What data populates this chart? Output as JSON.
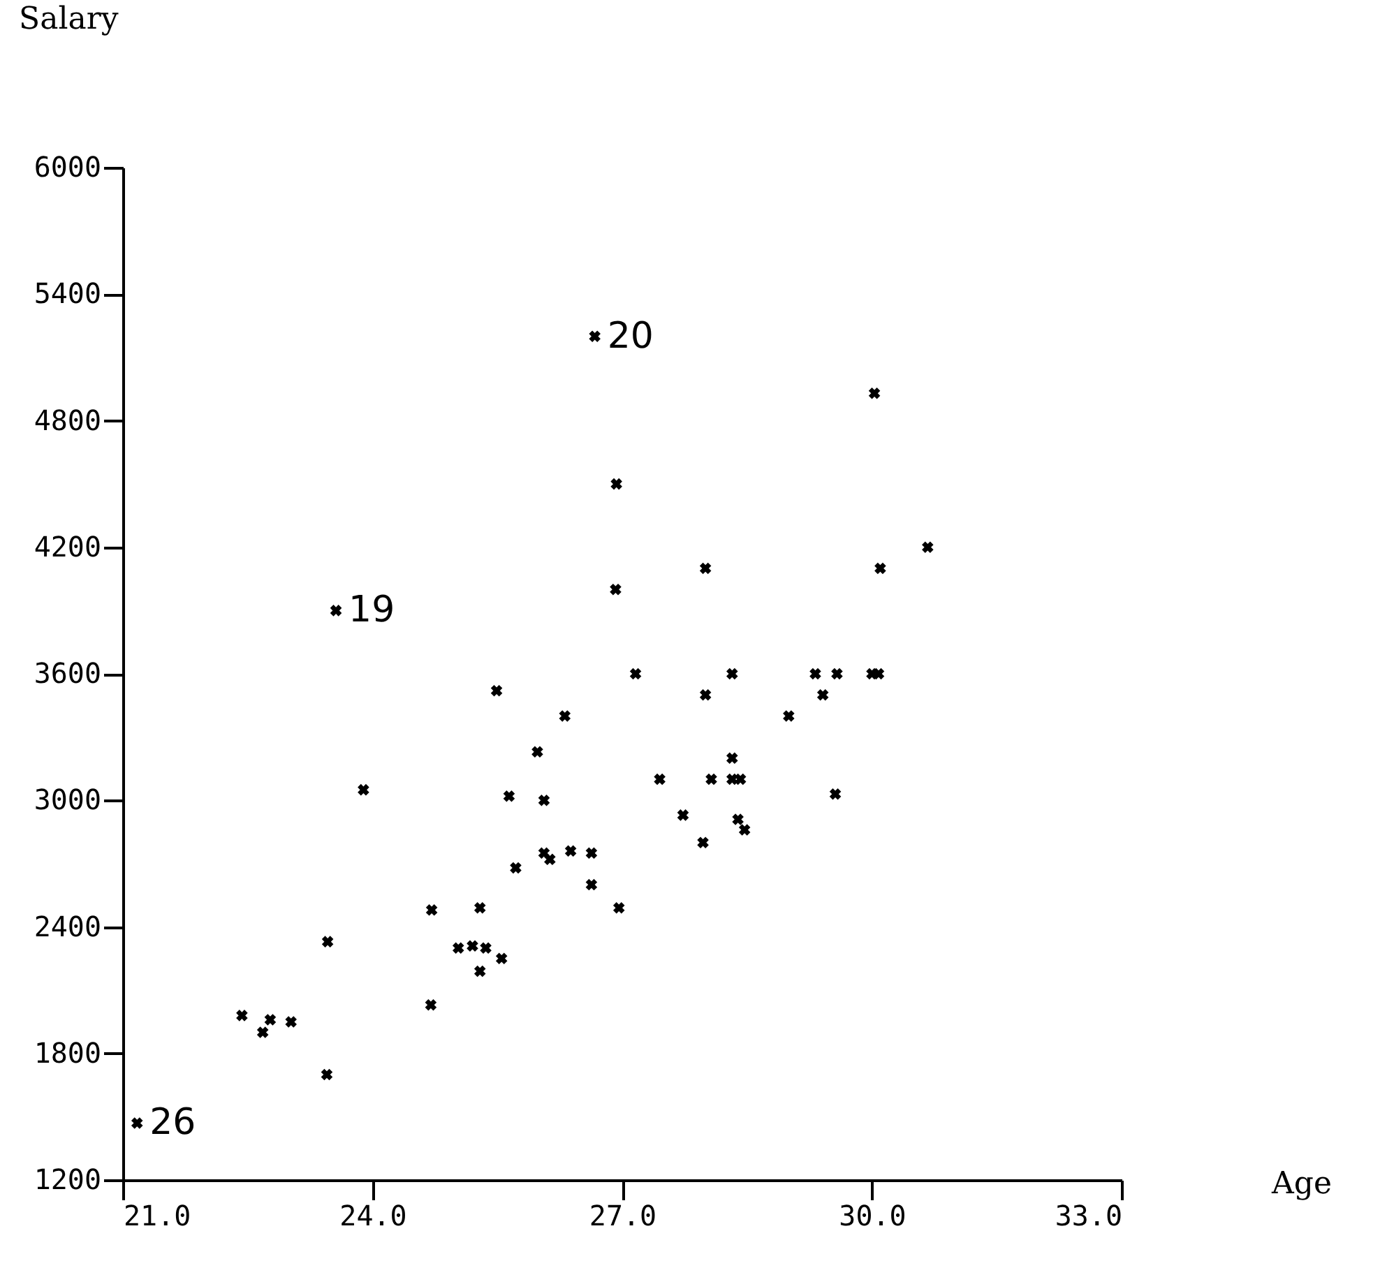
{
  "chart_data": {
    "type": "scatter",
    "xlabel": "Age",
    "ylabel": "Salary",
    "xlim": [
      21,
      33
    ],
    "xticks": [
      {
        "value": 21,
        "label": "21.0"
      },
      {
        "value": 24,
        "label": "24.0"
      },
      {
        "value": 27,
        "label": "27.0"
      },
      {
        "value": 30,
        "label": "30.0"
      },
      {
        "value": 33,
        "label": "33.0"
      }
    ],
    "ylim": [
      1200,
      6000
    ],
    "yticks": [
      1200,
      1800,
      2400,
      3000,
      3600,
      4200,
      4800,
      5400,
      6000
    ],
    "grid": false,
    "marker": "cross",
    "series": [
      {
        "color": "#000000",
        "x": [
          26.67,
          23.56,
          21.17,
          26.93,
          26.92,
          27.16,
          25.49,
          26.31,
          30.03,
          30.67,
          28.0,
          30.1,
          28.32,
          29.32,
          29.58,
          30.0,
          30.08,
          28.0,
          29.41,
          29.0,
          25.98,
          23.89,
          25.64,
          26.06,
          27.45,
          26.06,
          26.13,
          26.38,
          26.63,
          25.72,
          26.63,
          26.96,
          24.71,
          25.29,
          23.46,
          25.03,
          25.2,
          25.36,
          25.55,
          25.29,
          24.7,
          22.43,
          22.77,
          22.68,
          23.02,
          23.45,
          28.32,
          28.07,
          28.32,
          28.42,
          29.56,
          27.73,
          28.39,
          28.47,
          27.97
        ],
        "values": [
          5200,
          3900,
          1470,
          4500,
          4000,
          3600,
          3520,
          3400,
          4930,
          4200,
          4100,
          4100,
          3600,
          3600,
          3600,
          3600,
          3600,
          3500,
          3500,
          3400,
          3230,
          3050,
          3020,
          3000,
          3100,
          2750,
          2720,
          2760,
          2750,
          2680,
          2600,
          2490,
          2480,
          2490,
          2330,
          2300,
          2310,
          2300,
          2250,
          2190,
          2030,
          1980,
          1960,
          1900,
          1950,
          1700,
          3200,
          3100,
          3100,
          3100,
          3030,
          2930,
          2910,
          2860,
          2800
        ]
      }
    ],
    "annotations": [
      {
        "text": "20",
        "x": 26.67,
        "y": 5200
      },
      {
        "text": "19",
        "x": 23.56,
        "y": 3900
      },
      {
        "text": "26",
        "x": 21.17,
        "y": 1470
      }
    ]
  }
}
